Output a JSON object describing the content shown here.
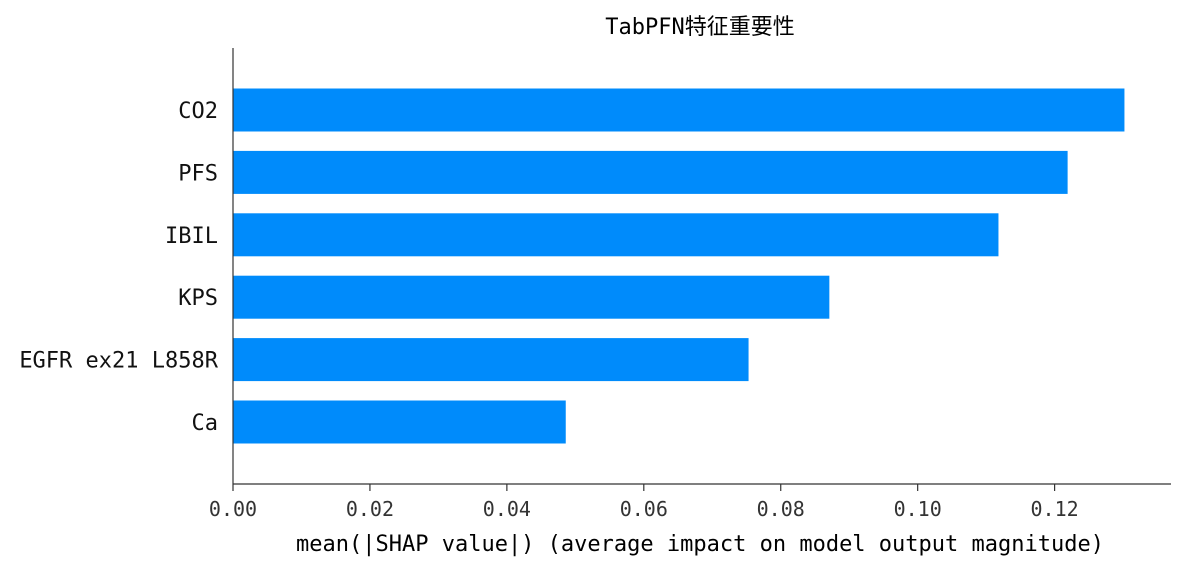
{
  "chart_data": {
    "type": "bar",
    "orientation": "horizontal",
    "title": "TabPFN特征重要性",
    "xlabel": "mean(|SHAP value|) (average impact on model output magnitude)",
    "ylabel": "",
    "categories": [
      "CO2",
      "PFS",
      "IBIL",
      "KPS",
      "EGFR ex21 L858R",
      "Ca"
    ],
    "values": [
      0.1302,
      0.1219,
      0.1118,
      0.0871,
      0.0753,
      0.0486
    ],
    "xlim": [
      0,
      0.137
    ],
    "xticks": [
      0.0,
      0.02,
      0.04,
      0.06,
      0.08,
      0.1,
      0.12
    ],
    "xtick_labels": [
      "0.00",
      "0.02",
      "0.04",
      "0.06",
      "0.08",
      "0.10",
      "0.12"
    ],
    "bar_color": "#008bfb",
    "grid": false,
    "legend": "none"
  }
}
